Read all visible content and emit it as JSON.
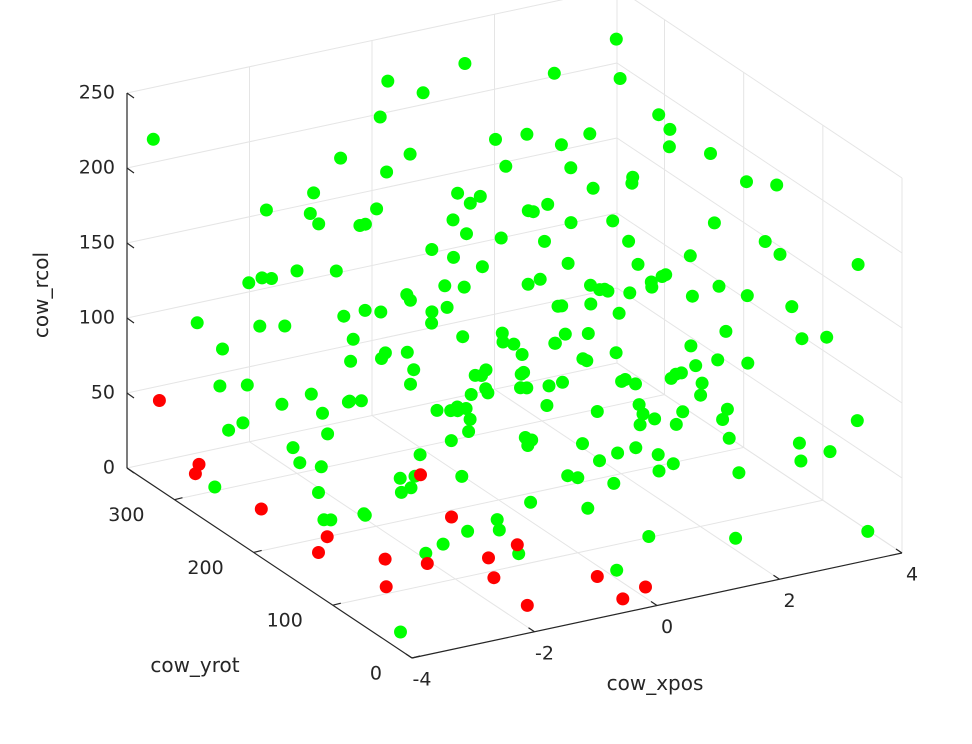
{
  "chart_data": {
    "type": "scatter",
    "dimensions": 3,
    "title": "",
    "xlabel": "cow_xpos",
    "ylabel": "cow_yrot",
    "zlabel": "cow_rcol",
    "xlim": [
      -4,
      4
    ],
    "ylim": [
      0,
      360
    ],
    "zlim": [
      0,
      250
    ],
    "xticks": [
      "-4",
      "-2",
      "0",
      "2",
      "4"
    ],
    "yticks": [
      "0",
      "100",
      "200",
      "300"
    ],
    "zticks": [
      "0",
      "50",
      "100",
      "150",
      "200",
      "250"
    ],
    "grid": true,
    "point_count_note": "",
    "colors": {
      "primary": "#00ff00",
      "secondary": "#ff0000",
      "axis": "#262626",
      "grid": "#e5e5e5"
    },
    "series": [
      {
        "color": "#00ff00",
        "points": [
          [
            -3.8,
            30,
            5
          ],
          [
            -3.6,
            280,
            12
          ],
          [
            -3.2,
            180,
            40
          ],
          [
            -3.0,
            320,
            60
          ],
          [
            -2.6,
            250,
            30
          ],
          [
            -2.2,
            100,
            25
          ],
          [
            -1.8,
            60,
            45
          ],
          [
            -1.5,
            300,
            22
          ],
          [
            -3.5,
            40,
            95
          ],
          [
            -3.1,
            150,
            110
          ],
          [
            -2.8,
            220,
            88
          ],
          [
            -2.4,
            330,
            120
          ],
          [
            -2.0,
            80,
            130
          ],
          [
            -1.6,
            260,
            100
          ],
          [
            -1.2,
            20,
            90
          ],
          [
            -0.8,
            190,
            70
          ],
          [
            -3.7,
            350,
            220
          ],
          [
            -3.3,
            120,
            240
          ],
          [
            -2.9,
            60,
            200
          ],
          [
            -2.5,
            300,
            180
          ],
          [
            -2.1,
            10,
            160
          ],
          [
            -1.7,
            210,
            230
          ],
          [
            -1.3,
            140,
            210
          ],
          [
            -0.9,
            330,
            190
          ],
          [
            -0.5,
            50,
            150
          ],
          [
            -0.1,
            250,
            170
          ],
          [
            0.3,
            110,
            140
          ],
          [
            0.7,
            290,
            160
          ],
          [
            1.1,
            30,
            120
          ],
          [
            1.5,
            200,
            130
          ],
          [
            1.9,
            90,
            100
          ],
          [
            2.3,
            320,
            110
          ],
          [
            2.7,
            160,
            80
          ],
          [
            3.1,
            60,
            60
          ],
          [
            3.5,
            240,
            40
          ],
          [
            3.9,
            120,
            20
          ],
          [
            3.7,
            20,
            10
          ],
          [
            3.3,
            300,
            15
          ],
          [
            2.9,
            200,
            25
          ],
          [
            2.5,
            90,
            35
          ],
          [
            -3.9,
            200,
            150
          ],
          [
            -3.4,
            80,
            170
          ],
          [
            -2.7,
            290,
            140
          ],
          [
            -2.3,
            170,
            125
          ],
          [
            -1.9,
            340,
            115
          ],
          [
            -1.4,
            50,
            105
          ],
          [
            -1.0,
            230,
            85
          ],
          [
            -0.6,
            120,
            75
          ],
          [
            -0.2,
            300,
            65
          ],
          [
            0.2,
            70,
            55
          ],
          [
            0.6,
            260,
            45
          ],
          [
            1.0,
            150,
            35
          ],
          [
            1.4,
            330,
            25
          ],
          [
            1.8,
            40,
            15
          ],
          [
            2.2,
            220,
            5
          ],
          [
            2.6,
            110,
            50
          ],
          [
            3.0,
            280,
            70
          ],
          [
            3.4,
            10,
            90
          ],
          [
            3.8,
            180,
            110
          ],
          [
            -3.6,
            90,
            60
          ],
          [
            -3.2,
            270,
            80
          ],
          [
            -2.8,
            30,
            100
          ],
          [
            -2.4,
            210,
            140
          ],
          [
            -2.0,
            130,
            160
          ],
          [
            -1.6,
            310,
            180
          ],
          [
            -1.2,
            70,
            200
          ],
          [
            -0.8,
            250,
            220
          ],
          [
            -0.4,
            160,
            240
          ],
          [
            0.0,
            340,
            230
          ],
          [
            0.4,
            20,
            210
          ],
          [
            0.8,
            200,
            190
          ],
          [
            1.2,
            100,
            170
          ],
          [
            1.6,
            280,
            150
          ],
          [
            2.0,
            40,
            130
          ],
          [
            2.4,
            220,
            110
          ],
          [
            2.8,
            140,
            90
          ],
          [
            3.2,
            320,
            70
          ],
          [
            3.6,
            60,
            50
          ],
          [
            -3.0,
            180,
            20
          ],
          [
            -2.6,
            40,
            140
          ],
          [
            -2.2,
            300,
            100
          ],
          [
            -1.8,
            160,
            60
          ],
          [
            -1.4,
            20,
            180
          ],
          [
            -1.0,
            350,
            140
          ],
          [
            -0.6,
            90,
            120
          ],
          [
            -0.2,
            230,
            100
          ],
          [
            0.2,
            180,
            80
          ],
          [
            0.6,
            40,
            200
          ],
          [
            1.0,
            320,
            240
          ],
          [
            1.4,
            140,
            220
          ],
          [
            1.8,
            260,
            200
          ],
          [
            2.2,
            0,
            180
          ],
          [
            2.6,
            310,
            160
          ],
          [
            3.0,
            190,
            140
          ],
          [
            3.4,
            80,
            120
          ],
          [
            3.8,
            350,
            100
          ],
          [
            -3.8,
            130,
            80
          ],
          [
            -3.4,
            260,
            60
          ],
          [
            -3.0,
            60,
            40
          ],
          [
            -2.6,
            340,
            20
          ],
          [
            -2.2,
            200,
            10
          ],
          [
            -1.8,
            100,
            30
          ],
          [
            -1.4,
            280,
            50
          ],
          [
            -1.0,
            10,
            70
          ],
          [
            -0.6,
            170,
            90
          ],
          [
            -0.2,
            60,
            110
          ],
          [
            0.2,
            300,
            130
          ],
          [
            0.6,
            130,
            150
          ],
          [
            1.0,
            240,
            170
          ],
          [
            1.4,
            30,
            190
          ],
          [
            1.8,
            170,
            210
          ],
          [
            2.2,
            300,
            230
          ],
          [
            2.6,
            50,
            240
          ],
          [
            3.0,
            230,
            220
          ],
          [
            3.4,
            150,
            200
          ],
          [
            3.8,
            40,
            180
          ],
          [
            -3.5,
            310,
            110
          ],
          [
            -3.1,
            20,
            130
          ],
          [
            -2.7,
            140,
            170
          ],
          [
            -2.3,
            260,
            190
          ],
          [
            -1.9,
            110,
            210
          ],
          [
            -1.5,
            200,
            150
          ],
          [
            -1.1,
            320,
            120
          ],
          [
            -0.7,
            40,
            100
          ],
          [
            -0.3,
            140,
            60
          ],
          [
            0.1,
            260,
            40
          ],
          [
            0.5,
            350,
            20
          ],
          [
            0.9,
            80,
            10
          ],
          [
            1.3,
            220,
            60
          ],
          [
            1.7,
            130,
            40
          ],
          [
            2.1,
            310,
            90
          ],
          [
            2.5,
            200,
            120
          ],
          [
            2.9,
            10,
            150
          ],
          [
            3.3,
            100,
            170
          ],
          [
            3.7,
            270,
            190
          ],
          [
            -0.9,
            90,
            45
          ],
          [
            -0.5,
            330,
            85
          ],
          [
            -0.1,
            10,
            125
          ],
          [
            0.3,
            220,
            165
          ],
          [
            0.7,
            90,
            205
          ],
          [
            1.1,
            170,
            245
          ],
          [
            1.5,
            320,
            185
          ],
          [
            1.9,
            60,
            145
          ],
          [
            2.3,
            240,
            105
          ],
          [
            2.7,
            120,
            65
          ],
          [
            3.1,
            280,
            25
          ],
          [
            -2.9,
            100,
            75
          ],
          [
            -2.5,
            180,
            95
          ],
          [
            -2.1,
            260,
            55
          ],
          [
            -1.7,
            40,
            155
          ],
          [
            -1.3,
            120,
            195
          ],
          [
            -0.9,
            280,
            235
          ],
          [
            0.5,
            60,
            95
          ],
          [
            0.9,
            240,
            75
          ],
          [
            1.3,
            80,
            55
          ],
          [
            1.7,
            300,
            35
          ],
          [
            2.1,
            160,
            15
          ],
          [
            2.5,
            240,
            245
          ],
          [
            0.1,
            120,
            185
          ],
          [
            -0.3,
            200,
            205
          ],
          [
            -0.7,
            300,
            165
          ],
          [
            -1.1,
            180,
            145
          ],
          [
            -1.5,
            100,
            135
          ],
          [
            -1.9,
            240,
            95
          ],
          [
            -2.3,
            60,
            115
          ],
          [
            -2.7,
            340,
            75
          ],
          [
            -3.1,
            220,
            55
          ],
          [
            -3.5,
            150,
            35
          ],
          [
            0.0,
            100,
            50
          ],
          [
            0.4,
            170,
            70
          ],
          [
            0.8,
            330,
            90
          ],
          [
            1.2,
            10,
            110
          ],
          [
            1.6,
            190,
            130
          ],
          [
            2.0,
            110,
            150
          ],
          [
            2.4,
            350,
            170
          ],
          [
            2.8,
            80,
            190
          ],
          [
            3.2,
            180,
            210
          ],
          [
            3.6,
            330,
            230
          ],
          [
            -0.4,
            20,
            20
          ],
          [
            -0.8,
            140,
            15
          ],
          [
            -1.2,
            230,
            5
          ],
          [
            -1.6,
            350,
            25
          ],
          [
            -2.0,
            20,
            45
          ],
          [
            -2.4,
            120,
            65
          ],
          [
            0.3,
            50,
            85
          ],
          [
            0.6,
            290,
            105
          ],
          [
            0.9,
            190,
            125
          ],
          [
            1.2,
            50,
            145
          ],
          [
            1.5,
            140,
            165
          ],
          [
            1.8,
            220,
            185
          ],
          [
            2.1,
            90,
            205
          ],
          [
            2.4,
            170,
            225
          ],
          [
            -0.2,
            280,
            245
          ],
          [
            -0.5,
            70,
            235
          ],
          [
            -0.8,
            190,
            215
          ],
          [
            -1.1,
            40,
            195
          ],
          [
            -1.4,
            260,
            175
          ],
          [
            -1.7,
            180,
            155
          ],
          [
            -2.0,
            300,
            135
          ],
          [
            -2.3,
            100,
            115
          ],
          [
            1.0,
            100,
            90
          ],
          [
            1.2,
            120,
            95
          ],
          [
            1.4,
            160,
            100
          ],
          [
            1.6,
            100,
            105
          ],
          [
            0.6,
            140,
            110
          ],
          [
            0.4,
            160,
            115
          ],
          [
            -0.2,
            180,
            120
          ],
          [
            -0.4,
            150,
            125
          ],
          [
            1.9,
            150,
            55
          ],
          [
            2.1,
            130,
            65
          ],
          [
            2.3,
            160,
            75
          ],
          [
            -1.3,
            160,
            85
          ],
          [
            -1.5,
            120,
            95
          ],
          [
            -0.9,
            160,
            105
          ],
          [
            0.7,
            170,
            115
          ],
          [
            0.2,
            210,
            100
          ]
        ]
      },
      {
        "color": "#ff0000",
        "points": [
          [
            -3.6,
            350,
            45
          ],
          [
            -3.6,
            300,
            20
          ],
          [
            -3.4,
            320,
            5
          ],
          [
            -3.1,
            260,
            0
          ],
          [
            -3.2,
            180,
            0
          ],
          [
            -3.0,
            110,
            0
          ],
          [
            -2.8,
            200,
            0
          ],
          [
            -2.5,
            150,
            0
          ],
          [
            -2.2,
            120,
            5
          ],
          [
            -1.6,
            40,
            0
          ],
          [
            -1.5,
            90,
            0
          ],
          [
            -1.2,
            120,
            0
          ],
          [
            -0.9,
            190,
            0
          ],
          [
            -0.6,
            130,
            0
          ],
          [
            -0.3,
            20,
            0
          ],
          [
            -0.5,
            260,
            0
          ],
          [
            -0.2,
            60,
            0
          ],
          [
            0.2,
            30,
            0
          ]
        ]
      }
    ]
  }
}
